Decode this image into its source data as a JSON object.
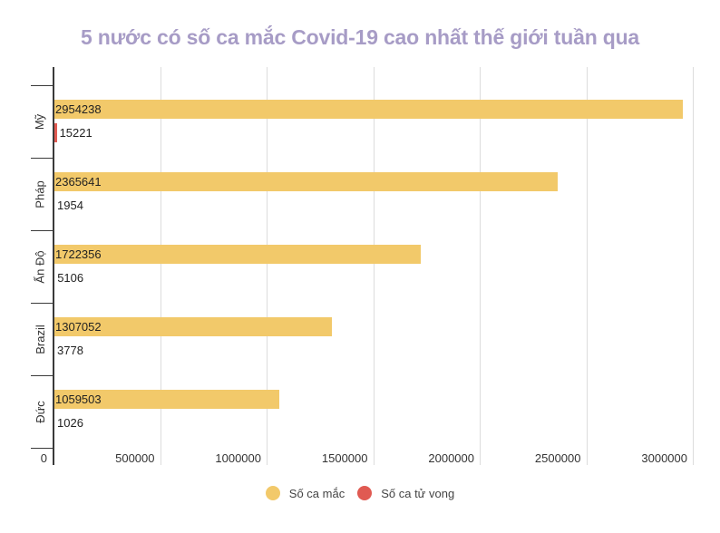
{
  "title": "5 nước có số ca mắc Covid-19 cao nhất thế giới tuần qua",
  "colors": {
    "cases": "#f2c96a",
    "deaths": "#e05a52",
    "title": "#a79cc6"
  },
  "legend": [
    {
      "label": "Số ca mắc",
      "color": "#f2c96a"
    },
    {
      "label": "Số ca tử vong",
      "color": "#e05a52"
    }
  ],
  "x_ticks": [
    "0",
    "500000",
    "1000000",
    "1500000",
    "2000000",
    "2500000",
    "3000000"
  ],
  "chart_data": {
    "type": "bar",
    "orientation": "horizontal",
    "title": "5 nước có số ca mắc Covid-19 cao nhất thế giới tuần qua",
    "categories": [
      "Mỹ",
      "Pháp",
      "Ấn Độ",
      "Brazil",
      "Đức"
    ],
    "series": [
      {
        "name": "Số ca mắc",
        "color": "#f2c96a",
        "values": [
          2954238,
          2365641,
          1722356,
          1307052,
          1059503
        ]
      },
      {
        "name": "Số ca tử vong",
        "color": "#e05a52",
        "values": [
          15221,
          1954,
          5106,
          3778,
          1026
        ]
      }
    ],
    "xlabel": "",
    "ylabel": "",
    "xlim": [
      0,
      3000000
    ],
    "x_ticks": [
      0,
      500000,
      1000000,
      1500000,
      2000000,
      2500000,
      3000000
    ],
    "grid": true,
    "legend_position": "bottom",
    "data_labels": true
  }
}
